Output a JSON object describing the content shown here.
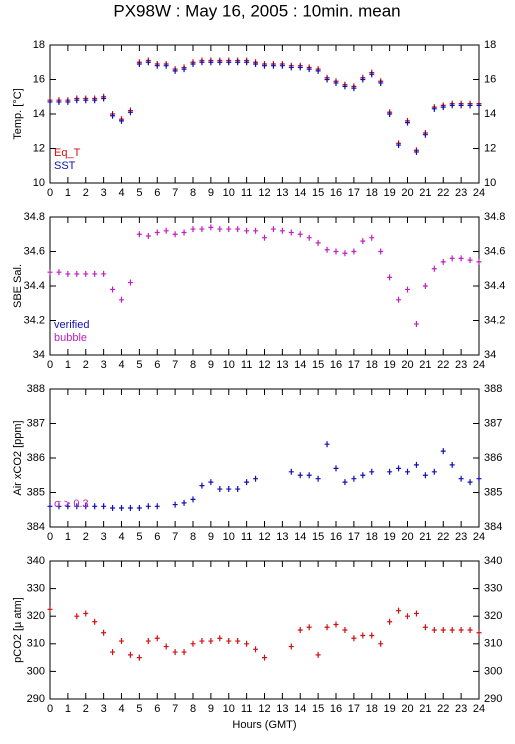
{
  "chart_data": [
    {
      "type": "scatter",
      "title": "PX98W : May 16, 2005 : 10min. mean",
      "ylabel": "Temp. [°C]",
      "x": [
        0,
        0.5,
        1,
        1.5,
        2,
        2.5,
        3,
        3.5,
        4,
        4.5,
        5,
        5.5,
        6,
        6.5,
        7,
        7.5,
        8,
        8.5,
        9,
        9.5,
        10,
        10.5,
        11,
        11.5,
        12,
        12.5,
        13,
        13.5,
        14,
        14.5,
        15,
        15.5,
        16,
        16.5,
        17,
        17.5,
        18,
        18.5,
        19,
        19.5,
        20,
        20.5,
        21,
        21.5,
        22,
        22.5,
        23,
        23.5,
        24
      ],
      "series": [
        {
          "name": "Eq_T",
          "color": "#d01010",
          "values": [
            14.8,
            14.8,
            14.8,
            14.9,
            14.9,
            14.9,
            15.0,
            14.0,
            13.7,
            14.2,
            17.0,
            17.1,
            16.9,
            16.9,
            16.6,
            16.7,
            17.0,
            17.1,
            17.1,
            17.1,
            17.1,
            17.1,
            17.1,
            17.0,
            16.9,
            16.9,
            16.9,
            16.8,
            16.8,
            16.7,
            16.6,
            16.1,
            15.9,
            15.7,
            15.6,
            16.1,
            16.4,
            15.9,
            14.1,
            12.3,
            13.6,
            11.9,
            12.9,
            14.4,
            14.5,
            14.6,
            14.6,
            14.6,
            14.6
          ]
        },
        {
          "name": "SST",
          "color": "#1010b0",
          "values": [
            14.7,
            14.7,
            14.7,
            14.8,
            14.8,
            14.8,
            14.9,
            13.9,
            13.6,
            14.1,
            16.9,
            17.0,
            16.8,
            16.8,
            16.5,
            16.6,
            16.9,
            17.0,
            17.0,
            17.0,
            17.0,
            17.0,
            17.0,
            16.9,
            16.8,
            16.8,
            16.8,
            16.7,
            16.7,
            16.6,
            16.5,
            16.0,
            15.8,
            15.6,
            15.5,
            16.0,
            16.3,
            15.8,
            14.0,
            12.2,
            13.5,
            11.8,
            12.8,
            14.3,
            14.4,
            14.5,
            14.5,
            14.5,
            14.5
          ]
        }
      ],
      "xlim": [
        0,
        24
      ],
      "ylim": [
        10,
        18
      ],
      "xticks": [
        0,
        1,
        2,
        3,
        4,
        5,
        6,
        7,
        8,
        9,
        10,
        11,
        12,
        13,
        14,
        15,
        16,
        17,
        18,
        19,
        20,
        21,
        22,
        23,
        24
      ],
      "yticks": [
        10,
        12,
        14,
        16,
        18
      ]
    },
    {
      "type": "scatter",
      "ylabel": "SBE Sal.",
      "x": [
        0,
        0.5,
        1,
        1.5,
        2,
        2.5,
        3,
        3.5,
        4,
        4.5,
        5,
        5.5,
        6,
        6.5,
        7,
        7.5,
        8,
        8.5,
        9,
        9.5,
        10,
        10.5,
        11,
        11.5,
        12,
        12.5,
        13,
        13.5,
        14,
        14.5,
        15,
        15.5,
        16,
        16.5,
        17,
        17.5,
        18,
        18.5,
        19,
        19.5,
        20,
        20.5,
        21,
        21.5,
        22,
        22.5,
        23,
        23.5,
        24
      ],
      "series": [
        {
          "name": "verified",
          "color": "#1010b0",
          "values": [
            null,
            null,
            null,
            null,
            null,
            null,
            null,
            null,
            null,
            null,
            null,
            null,
            null,
            null,
            null,
            null,
            null,
            null,
            null,
            null,
            null,
            null,
            null,
            null,
            null,
            null,
            null,
            null,
            null,
            null,
            null,
            null,
            null,
            null,
            null,
            null,
            null,
            null,
            null,
            null,
            null,
            null,
            null,
            null,
            null,
            null,
            null,
            null,
            null
          ]
        },
        {
          "name": "bubble",
          "color": "#c020c0",
          "values": [
            34.48,
            34.48,
            34.47,
            34.47,
            34.47,
            34.47,
            34.47,
            34.38,
            34.32,
            34.42,
            34.7,
            34.69,
            34.71,
            34.72,
            34.7,
            34.71,
            34.73,
            34.73,
            34.74,
            34.73,
            34.73,
            34.73,
            34.72,
            34.72,
            34.68,
            34.73,
            34.72,
            34.71,
            34.7,
            34.68,
            34.65,
            34.61,
            34.6,
            34.59,
            34.6,
            34.66,
            34.68,
            34.6,
            34.45,
            34.32,
            34.38,
            34.18,
            34.4,
            34.5,
            34.54,
            34.56,
            34.56,
            34.55,
            34.54
          ]
        }
      ],
      "xlim": [
        0,
        24
      ],
      "ylim": [
        34,
        34.8
      ],
      "xticks": [
        0,
        1,
        2,
        3,
        4,
        5,
        6,
        7,
        8,
        9,
        10,
        11,
        12,
        13,
        14,
        15,
        16,
        17,
        18,
        19,
        20,
        21,
        22,
        23,
        24
      ],
      "yticks": [
        34,
        34.2,
        34.4,
        34.6,
        34.8
      ]
    },
    {
      "type": "scatter",
      "ylabel": "Air xCO2 [ppm]",
      "annotation": "σ > 0.3",
      "annotation_color": "#c020c0",
      "x": [
        0,
        0.5,
        1,
        1.5,
        2,
        2.5,
        3,
        3.5,
        4,
        4.5,
        5,
        5.5,
        6,
        6.5,
        7,
        7.5,
        8,
        8.5,
        9,
        9.5,
        10,
        10.5,
        11,
        11.5,
        12,
        12.5,
        13,
        13.5,
        14,
        14.5,
        15,
        15.5,
        16,
        16.5,
        17,
        17.5,
        18,
        18.5,
        19,
        19.5,
        20,
        20.5,
        21,
        21.5,
        22,
        22.5,
        23,
        23.5,
        24
      ],
      "series": [
        {
          "name": "Air xCO2",
          "color": "#1010b0",
          "values": [
            384.6,
            384.6,
            384.6,
            384.6,
            384.6,
            384.6,
            384.6,
            384.55,
            384.55,
            384.55,
            384.55,
            384.6,
            384.6,
            null,
            384.65,
            384.7,
            384.8,
            385.2,
            385.3,
            385.1,
            385.1,
            385.1,
            385.3,
            385.4,
            null,
            null,
            null,
            385.6,
            385.5,
            385.5,
            385.4,
            386.4,
            385.7,
            385.3,
            385.4,
            385.5,
            385.6,
            null,
            385.6,
            385.7,
            385.6,
            385.8,
            385.5,
            385.6,
            386.2,
            385.8,
            385.4,
            385.3,
            385.4
          ]
        }
      ],
      "xlim": [
        0,
        24
      ],
      "ylim": [
        384,
        388
      ],
      "xticks": [
        0,
        1,
        2,
        3,
        4,
        5,
        6,
        7,
        8,
        9,
        10,
        11,
        12,
        13,
        14,
        15,
        16,
        17,
        18,
        19,
        20,
        21,
        22,
        23,
        24
      ],
      "yticks": [
        384,
        385,
        386,
        387,
        388
      ]
    },
    {
      "type": "scatter",
      "ylabel": "pCO2 [µ atm]",
      "xlabel": "Hours (GMT)",
      "x": [
        0,
        0.5,
        1,
        1.5,
        2,
        2.5,
        3,
        3.5,
        4,
        4.5,
        5,
        5.5,
        6,
        6.5,
        7,
        7.5,
        8,
        8.5,
        9,
        9.5,
        10,
        10.5,
        11,
        11.5,
        12,
        12.5,
        13,
        13.5,
        14,
        14.5,
        15,
        15.5,
        16,
        16.5,
        17,
        17.5,
        18,
        18.5,
        19,
        19.5,
        20,
        20.5,
        21,
        21.5,
        22,
        22.5,
        23,
        23.5,
        24
      ],
      "series": [
        {
          "name": "pCO2",
          "color": "#d01010",
          "values": [
            322.5,
            null,
            null,
            320,
            321,
            318,
            314,
            307,
            311,
            306,
            305,
            311,
            312,
            309,
            307,
            307,
            310,
            311,
            311,
            312,
            311,
            311,
            310,
            308,
            305,
            null,
            null,
            309,
            315,
            316,
            306,
            316,
            317,
            315,
            312,
            313,
            313,
            310,
            318,
            322,
            320,
            321,
            316,
            315,
            315,
            315,
            315,
            315,
            314
          ]
        }
      ],
      "xlim": [
        0,
        24
      ],
      "ylim": [
        290,
        340
      ],
      "xticks": [
        0,
        1,
        2,
        3,
        4,
        5,
        6,
        7,
        8,
        9,
        10,
        11,
        12,
        13,
        14,
        15,
        16,
        17,
        18,
        19,
        20,
        21,
        22,
        23,
        24
      ],
      "yticks": [
        290,
        300,
        310,
        320,
        330,
        340
      ]
    }
  ]
}
